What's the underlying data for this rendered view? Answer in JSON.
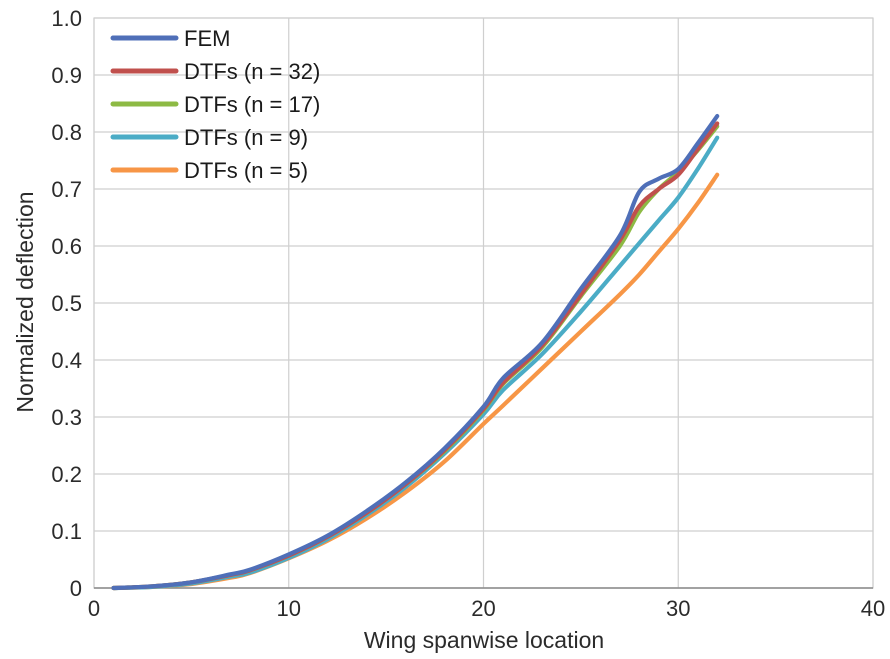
{
  "chart_data": {
    "type": "line",
    "title": "",
    "xlabel": "Wing spanwise location",
    "ylabel": "Normalized deflection",
    "xlim": [
      0,
      40
    ],
    "ylim": [
      0,
      1.0
    ],
    "x_ticks": [
      0,
      10,
      20,
      30,
      40
    ],
    "x_tick_labels": [
      "0",
      "10",
      "20",
      "30",
      "40"
    ],
    "y_ticks": [
      0,
      0.1,
      0.2,
      0.3,
      0.4,
      0.5,
      0.6,
      0.7,
      0.8,
      0.9,
      1.0
    ],
    "y_tick_labels": [
      "0",
      "0.1",
      "0.2",
      "0.3",
      "0.4",
      "0.5",
      "0.6",
      "0.7",
      "0.8",
      "0.9",
      "1.0"
    ],
    "grid": true,
    "legend_position": "top-left",
    "series": [
      {
        "name": "FEM",
        "color": "#4f6fb8",
        "x": [
          1,
          3,
          5,
          7,
          8,
          10,
          12,
          14,
          16,
          18,
          20,
          21,
          23,
          25,
          27,
          28,
          29,
          30,
          31,
          32
        ],
        "y": [
          0,
          0.003,
          0.01,
          0.024,
          0.032,
          0.059,
          0.092,
          0.135,
          0.185,
          0.245,
          0.318,
          0.368,
          0.43,
          0.525,
          0.618,
          0.695,
          0.718,
          0.735,
          0.78,
          0.828
        ]
      },
      {
        "name": "DTFs (n = 32)",
        "color": "#c0504d",
        "x": [
          1,
          3,
          5,
          7,
          8,
          10,
          12,
          14,
          16,
          18,
          20,
          21,
          23,
          25,
          27,
          28,
          29,
          30,
          31,
          32
        ],
        "y": [
          0,
          0.003,
          0.01,
          0.023,
          0.031,
          0.057,
          0.09,
          0.132,
          0.182,
          0.242,
          0.314,
          0.36,
          0.425,
          0.515,
          0.61,
          0.67,
          0.7,
          0.725,
          0.77,
          0.815
        ]
      },
      {
        "name": "DTFs (n = 17)",
        "color": "#8dba44",
        "x": [
          1,
          3,
          5,
          7,
          8,
          10,
          12,
          14,
          16,
          18,
          20,
          21,
          23,
          25,
          27,
          28,
          29,
          30,
          31,
          32
        ],
        "y": [
          0,
          0.003,
          0.01,
          0.023,
          0.031,
          0.057,
          0.09,
          0.132,
          0.182,
          0.24,
          0.312,
          0.358,
          0.422,
          0.512,
          0.6,
          0.66,
          0.7,
          0.73,
          0.768,
          0.81
        ]
      },
      {
        "name": "DTFs (n = 9)",
        "color": "#4bacc6",
        "x": [
          1,
          3,
          5,
          7,
          8,
          10,
          12,
          14,
          16,
          18,
          20,
          21,
          23,
          25,
          27,
          28,
          29,
          30,
          31,
          32
        ],
        "y": [
          0,
          0.002,
          0.008,
          0.02,
          0.027,
          0.053,
          0.086,
          0.128,
          0.177,
          0.236,
          0.305,
          0.347,
          0.41,
          0.485,
          0.565,
          0.605,
          0.645,
          0.685,
          0.735,
          0.79
        ]
      },
      {
        "name": "DTFs (n = 5)",
        "color": "#f79646",
        "x": [
          1,
          3,
          5,
          7,
          8,
          10,
          12,
          14,
          16,
          18,
          20,
          21,
          23,
          25,
          27,
          28,
          29,
          30,
          31,
          32
        ],
        "y": [
          0,
          0.002,
          0.007,
          0.018,
          0.026,
          0.052,
          0.083,
          0.122,
          0.168,
          0.222,
          0.288,
          0.32,
          0.385,
          0.45,
          0.515,
          0.55,
          0.59,
          0.63,
          0.675,
          0.725
        ]
      }
    ]
  }
}
